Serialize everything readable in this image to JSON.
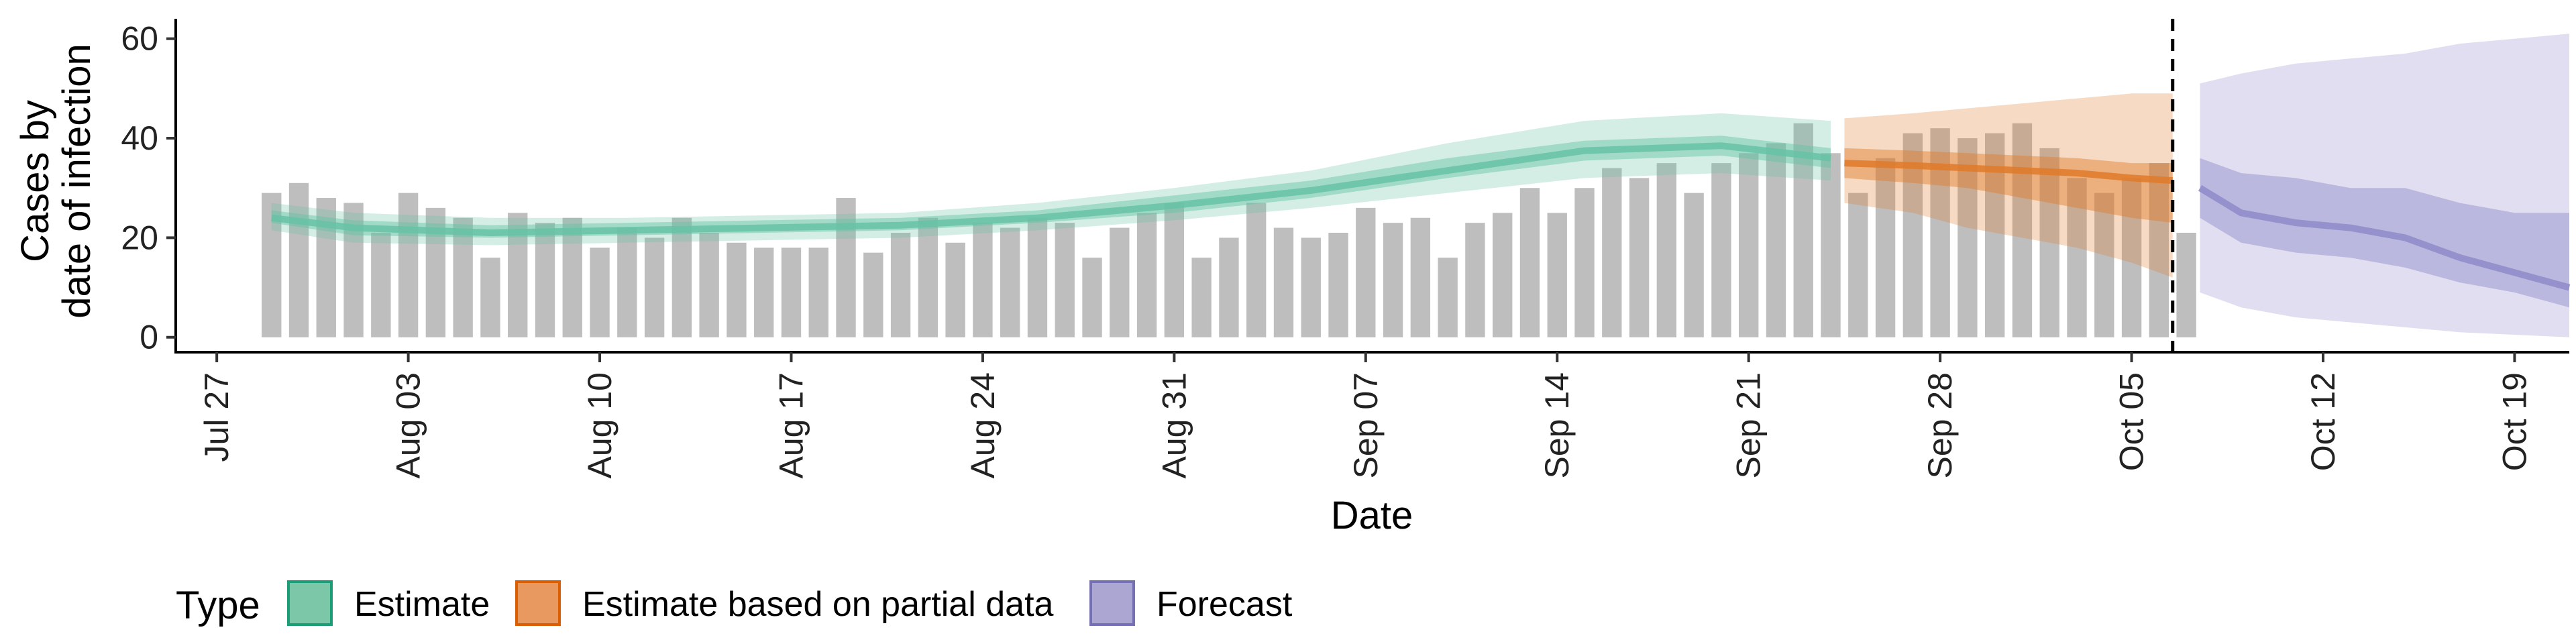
{
  "chart_data": {
    "type": "bar",
    "xlabel": "Date",
    "ylabel_line1": "Cases by",
    "ylabel_line2": "date of infection",
    "ylim": [
      -3,
      64
    ],
    "yticks": [
      0,
      20,
      40,
      60
    ],
    "x_range_days": [
      -1.5,
      86
    ],
    "x_ticks": [
      {
        "day": 0,
        "label": "Jul 27"
      },
      {
        "day": 7,
        "label": "Aug 03"
      },
      {
        "day": 14,
        "label": "Aug 10"
      },
      {
        "day": 21,
        "label": "Aug 17"
      },
      {
        "day": 28,
        "label": "Aug 24"
      },
      {
        "day": 35,
        "label": "Aug 31"
      },
      {
        "day": 42,
        "label": "Sep 07"
      },
      {
        "day": 49,
        "label": "Sep 14"
      },
      {
        "day": 56,
        "label": "Sep 21"
      },
      {
        "day": 63,
        "label": "Sep 28"
      },
      {
        "day": 70,
        "label": "Oct 05"
      },
      {
        "day": 77,
        "label": "Oct 12"
      },
      {
        "day": 84,
        "label": "Oct 19"
      }
    ],
    "bars_start_day": 2,
    "bar_values": [
      29,
      31,
      28,
      27,
      21,
      29,
      26,
      24,
      16,
      25,
      23,
      24,
      18,
      22,
      20,
      24,
      21,
      19,
      18,
      18,
      18,
      28,
      17,
      21,
      24,
      19,
      23,
      22,
      24,
      23,
      16,
      22,
      25,
      27,
      16,
      20,
      27,
      22,
      20,
      21,
      26,
      23,
      24,
      16,
      23,
      25,
      30,
      25,
      30,
      34,
      32,
      35,
      29,
      35,
      37,
      39,
      43,
      37,
      29,
      36,
      41,
      42,
      40,
      41,
      43,
      38,
      32,
      29,
      32,
      35,
      21
    ],
    "forecast_cutoff_day": 71.5,
    "series": [
      {
        "name": "Estimate",
        "days": [
          2,
          5,
          10,
          15,
          20,
          25,
          30,
          35,
          40,
          45,
          50,
          55,
          59
        ],
        "median": [
          24,
          22,
          21,
          21.5,
          22,
          22.5,
          24,
          26.5,
          29.5,
          33.5,
          37.5,
          38.5,
          36
        ],
        "inner": [
          [
            23,
            25.5
          ],
          [
            20.5,
            23.5
          ],
          [
            20,
            22.5
          ],
          [
            20.5,
            23
          ],
          [
            21,
            23.5
          ],
          [
            21.5,
            24
          ],
          [
            23,
            25.5
          ],
          [
            25,
            28.5
          ],
          [
            28,
            31.5
          ],
          [
            32,
            36
          ],
          [
            35.5,
            39.5
          ],
          [
            36.5,
            40.5
          ],
          [
            34,
            38
          ]
        ],
        "outer": [
          [
            21.5,
            27
          ],
          [
            19,
            25
          ],
          [
            18.5,
            24
          ],
          [
            19,
            24
          ],
          [
            19.5,
            24.5
          ],
          [
            20,
            25
          ],
          [
            21.5,
            27
          ],
          [
            23.5,
            30
          ],
          [
            26,
            33.5
          ],
          [
            29,
            39
          ],
          [
            32,
            43.5
          ],
          [
            33,
            45
          ],
          [
            31.5,
            43.5
          ]
        ]
      },
      {
        "name": "Estimate based on partial data",
        "days": [
          59.5,
          62,
          64,
          66,
          68,
          70,
          71.5
        ],
        "median": [
          35,
          34.5,
          34,
          33.5,
          33,
          32,
          31.5
        ],
        "inner": [
          [
            32,
            38
          ],
          [
            31,
            37.5
          ],
          [
            30,
            37
          ],
          [
            28,
            36.5
          ],
          [
            26,
            36
          ],
          [
            24,
            35
          ],
          [
            23,
            35
          ]
        ],
        "outer": [
          [
            27,
            44
          ],
          [
            25,
            45
          ],
          [
            22,
            46
          ],
          [
            20,
            47
          ],
          [
            18,
            48
          ],
          [
            15,
            49
          ],
          [
            12,
            49
          ]
        ]
      },
      {
        "name": "Forecast",
        "days": [
          72.5,
          74,
          76,
          78,
          80,
          82,
          84,
          86
        ],
        "median": [
          30,
          25,
          23,
          22,
          20,
          16,
          13,
          10
        ],
        "inner": [
          [
            24,
            36
          ],
          [
            19,
            33
          ],
          [
            17,
            32
          ],
          [
            16,
            30
          ],
          [
            14,
            30
          ],
          [
            11,
            27
          ],
          [
            9,
            25
          ],
          [
            6,
            25
          ]
        ],
        "outer": [
          [
            9,
            51
          ],
          [
            6,
            53
          ],
          [
            4,
            55
          ],
          [
            3,
            56
          ],
          [
            2,
            57
          ],
          [
            1,
            59
          ],
          [
            0.5,
            60
          ],
          [
            0,
            61
          ]
        ]
      }
    ],
    "colors": {
      "bar": "#BEBEBE",
      "estimate": "#66C2A5",
      "partial": "#E07A2A",
      "forecast": "#8E89C9",
      "estimate_key_fill": "#7CC7A7",
      "estimate_key_stroke": "#1B9E77",
      "partial_key_fill": "#E8995F",
      "partial_key_stroke": "#D95F02",
      "forecast_key_fill": "#ABA7D2",
      "forecast_key_stroke": "#7570B3"
    }
  },
  "legend": {
    "title": "Type",
    "items": [
      {
        "label": "Estimate"
      },
      {
        "label": "Estimate based on partial data"
      },
      {
        "label": "Forecast"
      }
    ]
  }
}
